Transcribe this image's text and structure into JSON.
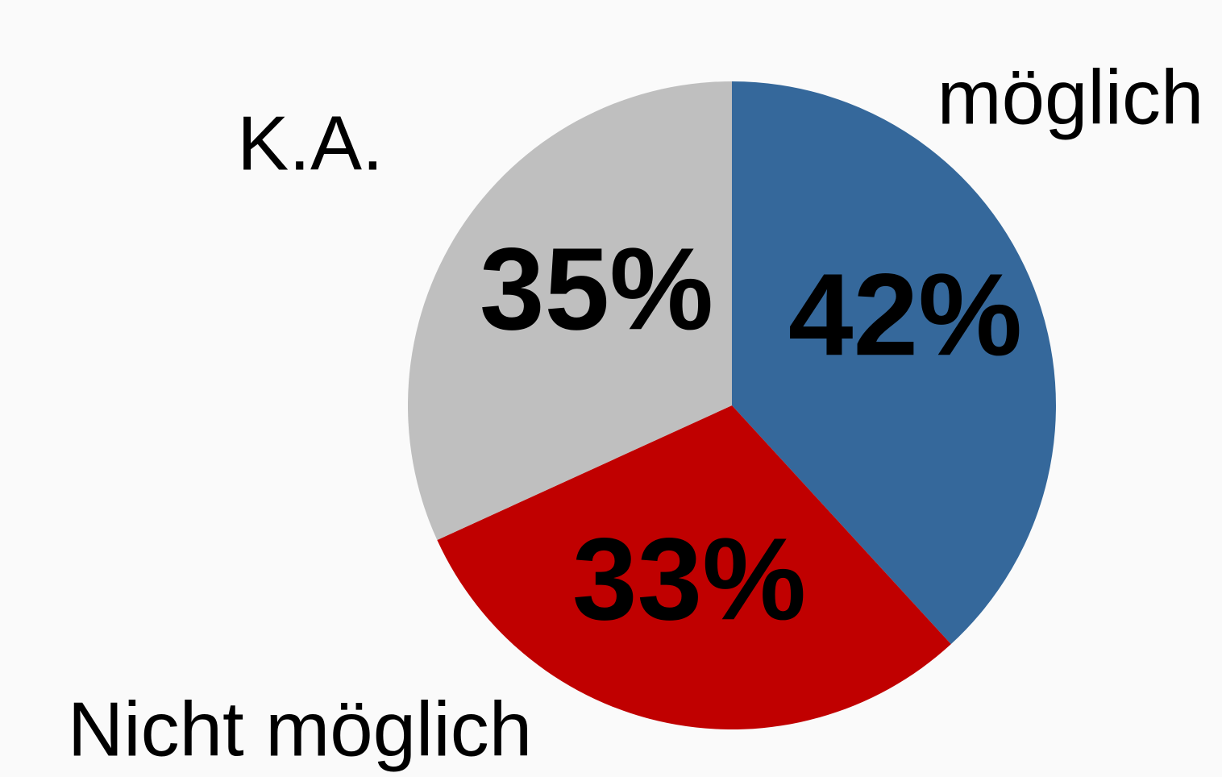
{
  "chart_data": {
    "type": "pie",
    "categories": [
      "möglich",
      "Nicht möglich",
      "K.A."
    ],
    "values": [
      42,
      33,
      35
    ],
    "value_labels": [
      "42%",
      "33%",
      "35%"
    ],
    "colors": [
      "#35689b",
      "#c00000",
      "#bfbfbf"
    ]
  }
}
